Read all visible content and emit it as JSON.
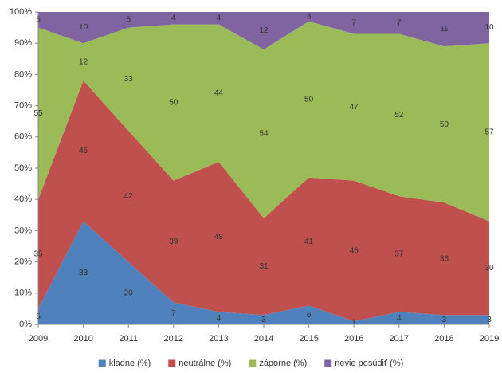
{
  "chart_data": {
    "type": "stacked_area",
    "categories": [
      "2009",
      "2010",
      "2011",
      "2012",
      "2013",
      "2014",
      "2015",
      "2016",
      "2017",
      "2018",
      "2019"
    ],
    "series": [
      {
        "name": "kladne (%)",
        "color": "#4f81bd",
        "values": [
          5,
          33,
          20,
          7,
          4,
          3,
          6,
          1,
          4,
          3,
          3
        ]
      },
      {
        "name": "neutrálne (%)",
        "color": "#c0504d",
        "values": [
          35,
          45,
          42,
          39,
          48,
          31,
          41,
          45,
          37,
          36,
          30
        ]
      },
      {
        "name": "záporne (%)",
        "color": "#9bbb59",
        "values": [
          55,
          12,
          33,
          50,
          44,
          54,
          50,
          47,
          52,
          50,
          57
        ]
      },
      {
        "name": "nevie posúdiť (%)",
        "color": "#8064a2",
        "values": [
          5,
          10,
          5,
          4,
          4,
          12,
          3,
          7,
          7,
          11,
          10
        ]
      }
    ],
    "ylim": [
      0,
      100
    ],
    "yticks": [
      {
        "value": 0,
        "label": "0%"
      },
      {
        "value": 10,
        "label": "10%"
      },
      {
        "value": 20,
        "label": "20%"
      },
      {
        "value": 30,
        "label": "30%"
      },
      {
        "value": 40,
        "label": "40%"
      },
      {
        "value": 50,
        "label": "50%"
      },
      {
        "value": 60,
        "label": "60%"
      },
      {
        "value": 70,
        "label": "70%"
      },
      {
        "value": 80,
        "label": "80%"
      },
      {
        "value": 90,
        "label": "90%"
      },
      {
        "value": 100,
        "label": "100%"
      }
    ],
    "legend": "bottom"
  }
}
